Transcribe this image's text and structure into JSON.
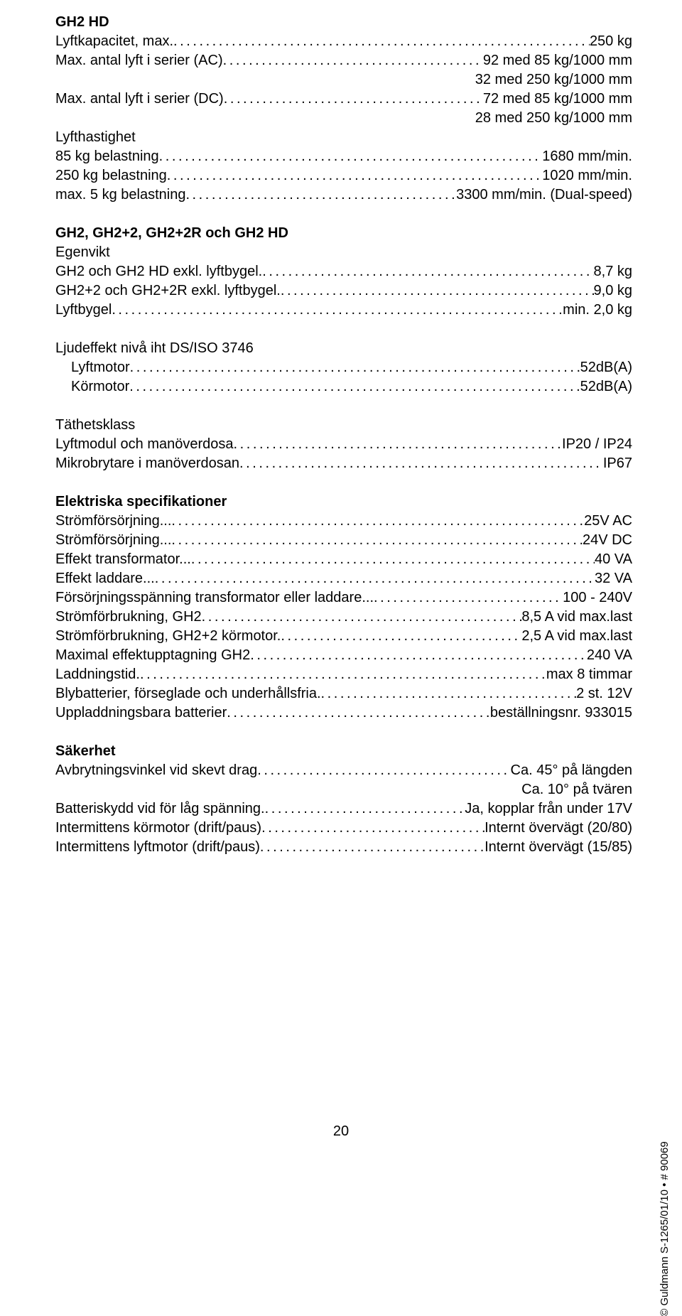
{
  "section1": {
    "title": "GH2 HD",
    "lines": [
      {
        "label": "Lyftkapacitet, max.",
        "value": " 250 kg"
      },
      {
        "label": "Max. antal lyft i serier  (AC)",
        "value": "92 med 85 kg/1000 mm"
      },
      {
        "label": "",
        "value": "32 med 250 kg/1000 mm",
        "plain": true,
        "right": true
      },
      {
        "label": "Max. antal lyft i serier  (DC)",
        "value": "72 med 85 kg/1000 mm"
      },
      {
        "label": "",
        "value": "28 med 250 kg/1000 mm",
        "plain": true,
        "right": true
      },
      {
        "label": "Lyfthastighet",
        "value": "",
        "plain": true
      },
      {
        "label": "85 kg belastning",
        "value": " 1680 mm/min."
      },
      {
        "label": "250 kg belastning",
        "value": " 1020 mm/min."
      },
      {
        "label": "max. 5 kg belastning ",
        "value": " 3300 mm/min. (Dual-speed)"
      }
    ]
  },
  "section2": {
    "title": "GH2, GH2+2, GH2+2R och GH2 HD",
    "lines": [
      {
        "label": "Egenvikt",
        "value": "",
        "plain": true
      },
      {
        "label": "GH2 och GH2 HD exkl. lyftbygel.",
        "value": "8,7 kg"
      },
      {
        "label": "GH2+2 och GH2+2R exkl. lyftbygel.",
        "value": "9,0 kg"
      },
      {
        "label": "Lyftbygel",
        "value": "min. 2,0 kg"
      }
    ]
  },
  "section3": {
    "lines": [
      {
        "label": "Ljudeffekt nivå iht DS/ISO 3746",
        "value": "",
        "plain": true
      },
      {
        "label": "Lyftmotor",
        "value": " 52dB(A)",
        "indent": true
      },
      {
        "label": "Körmotor",
        "value": " 52dB(A)",
        "indent": true
      }
    ]
  },
  "section4": {
    "lines": [
      {
        "label": "Täthetsklass",
        "value": "",
        "plain": true
      },
      {
        "label": "Lyftmodul och manöverdosa ",
        "value": "IP20 / IP24"
      },
      {
        "label": "Mikrobrytare i manöverdosan ",
        "value": " IP67"
      }
    ]
  },
  "section5": {
    "title": "Elektriska specifikationer",
    "lines": [
      {
        "label": "Strömförsörjning...",
        "value": "25V AC"
      },
      {
        "label": "Strömförsörjning...",
        "value": " 24V DC"
      },
      {
        "label": "Effekt transformator...",
        "value": " 40 VA"
      },
      {
        "label": "Effekt laddare...",
        "value": " 32 VA"
      },
      {
        "label": "Försörjningsspänning transformator eller laddare...",
        "value": " 100 - 240V"
      },
      {
        "label": "Strömförbrukning, GH2 ",
        "value": "8,5 A vid max.last"
      },
      {
        "label": "Strömförbrukning, GH2+2 körmotor.",
        "value": "2,5 A vid max.last"
      },
      {
        "label": "Maximal effektupptagning GH2",
        "value": " 240 VA"
      },
      {
        "label": "Laddningstid.",
        "value": "max 8 timmar"
      },
      {
        "label": "Blybatterier, förseglade och underhållsfria.",
        "value": " 2 st. 12V"
      },
      {
        "label": "Uppladdningsbara batterier ",
        "value": "beställningsnr. 933015"
      }
    ]
  },
  "section6": {
    "title": "Säkerhet",
    "lines": [
      {
        "label": "Avbrytningsvinkel vid skevt drag ",
        "value": " Ca. 45° på längden"
      },
      {
        "label": "",
        "value": "Ca. 10° på tvären",
        "plain": true,
        "right": true
      },
      {
        "label": "Batteriskydd vid för låg spänning.",
        "value": " Ja, kopplar från under 17V"
      },
      {
        "label": "Intermittens körmotor (drift/paus)",
        "value": " Internt övervägt (20/80)"
      },
      {
        "label": "Intermittens lyftmotor (drift/paus)",
        "value": " Internt övervägt (15/85)"
      }
    ]
  },
  "footer": {
    "page": "20",
    "side": "© Guldmann  S-1265/01/10  •  # 90069"
  }
}
